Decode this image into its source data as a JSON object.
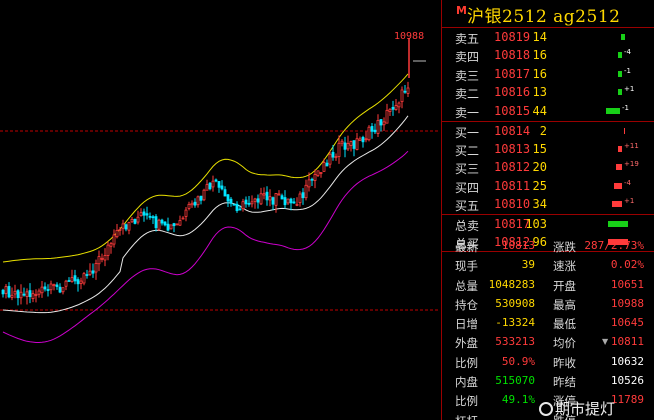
{
  "chart": {
    "high_label": "10988",
    "colors": {
      "up": "#ff3b3b",
      "down": "#00e5ff",
      "upper_band": "#e8e000",
      "mid_band": "#e8e8e8",
      "lower_band": "#cc00cc",
      "ref_line": "#c00000"
    }
  },
  "panel": {
    "marker": "M",
    "title": "沪银2512  ag2512",
    "asks": [
      {
        "label": "卖五",
        "price": "10819",
        "vol": "14",
        "delta": ""
      },
      {
        "label": "卖四",
        "price": "10818",
        "vol": "16",
        "delta": "-4"
      },
      {
        "label": "卖三",
        "price": "10817",
        "vol": "16",
        "delta": "-1"
      },
      {
        "label": "卖二",
        "price": "10816",
        "vol": "13",
        "delta": "+1"
      },
      {
        "label": "卖一",
        "price": "10815",
        "vol": "44",
        "delta": "-1"
      }
    ],
    "bids": [
      {
        "label": "买一",
        "price": "10814",
        "vol": "2",
        "delta": ""
      },
      {
        "label": "买二",
        "price": "10813",
        "vol": "15",
        "delta": "+11"
      },
      {
        "label": "买三",
        "price": "10812",
        "vol": "20",
        "delta": "+19"
      },
      {
        "label": "买四",
        "price": "10811",
        "vol": "25",
        "delta": "-4"
      },
      {
        "label": "买五",
        "price": "10810",
        "vol": "34",
        "delta": "+1"
      }
    ],
    "totals": [
      {
        "label": "总卖",
        "price": "10817",
        "vol": "103"
      },
      {
        "label": "总买",
        "price": "10812",
        "vol": "96"
      }
    ],
    "stats": [
      {
        "l1": "最新",
        "v1": "10813",
        "l2": "涨跌",
        "v2": "287/2.73%"
      },
      {
        "l1": "现手",
        "v1": "39",
        "l2": "速涨",
        "v2": "0.02%"
      },
      {
        "l1": "总量",
        "v1": "1048283",
        "l2": "开盘",
        "v2": "10651"
      },
      {
        "l1": "持仓",
        "v1": "530908",
        "l2": "最高",
        "v2": "10988"
      },
      {
        "l1": "日增",
        "v1": "-13324",
        "l2": "最低",
        "v2": "10645"
      },
      {
        "l1": "外盘",
        "v1": "533213",
        "l2": "均价",
        "v2": "10811"
      },
      {
        "l1": "比例",
        "v1": "50.9%",
        "l2": "昨收",
        "v2": "10632"
      },
      {
        "l1": "内盘",
        "v1": "515070",
        "l2": "昨结",
        "v2": "10526"
      },
      {
        "l1": "比例",
        "v1": "49.1%",
        "l2": "涨停",
        "v2": "11789"
      },
      {
        "l1": "杠杆",
        "v1": "",
        "l2": "跌停",
        "v2": ""
      }
    ],
    "watermark": "期市提灯"
  }
}
